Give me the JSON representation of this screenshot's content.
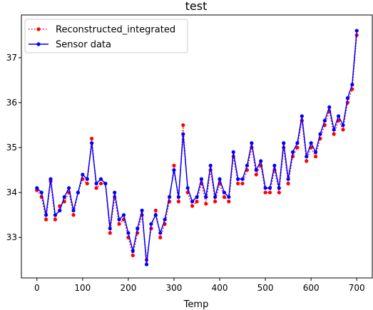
{
  "chart_data": {
    "type": "line",
    "title": "test",
    "xlabel": "Temp",
    "ylabel": "",
    "xlim": [
      -34,
      734
    ],
    "ylim": [
      32.1,
      37.95
    ],
    "xticks": [
      0,
      100,
      200,
      300,
      400,
      500,
      600,
      700
    ],
    "yticks": [
      33,
      34,
      35,
      36,
      37
    ],
    "grid": false,
    "legend_position": "upper left",
    "series": [
      {
        "name": "Reconstructed_integrated",
        "color": "#ff0000",
        "linestyle": "dotted",
        "marker": "circle",
        "x": [
          0,
          10,
          20,
          30,
          40,
          50,
          60,
          70,
          80,
          90,
          100,
          110,
          120,
          130,
          140,
          150,
          160,
          170,
          180,
          190,
          200,
          210,
          220,
          230,
          240,
          250,
          260,
          270,
          280,
          290,
          300,
          310,
          320,
          330,
          340,
          350,
          360,
          370,
          380,
          390,
          400,
          410,
          420,
          430,
          440,
          450,
          460,
          470,
          480,
          490,
          500,
          510,
          520,
          530,
          540,
          550,
          560,
          570,
          580,
          590,
          600,
          610,
          620,
          630,
          640,
          650,
          660,
          670,
          680,
          690,
          700
        ],
        "y": [
          34.05,
          33.9,
          33.4,
          34.25,
          33.4,
          33.7,
          33.8,
          34.0,
          33.5,
          34.0,
          34.3,
          34.2,
          35.2,
          34.1,
          34.2,
          34.2,
          33.1,
          33.9,
          33.3,
          33.4,
          33.0,
          32.6,
          33.1,
          33.5,
          32.5,
          33.2,
          33.6,
          33.0,
          33.3,
          33.8,
          34.6,
          33.8,
          35.5,
          34.0,
          33.7,
          33.8,
          34.2,
          33.75,
          34.5,
          33.8,
          34.2,
          33.9,
          33.8,
          34.8,
          34.2,
          34.2,
          34.5,
          35.0,
          34.4,
          34.6,
          34.0,
          34.0,
          34.5,
          34.0,
          35.0,
          34.2,
          34.8,
          35.0,
          35.6,
          34.7,
          35.0,
          34.8,
          35.2,
          35.5,
          35.8,
          35.3,
          35.6,
          35.4,
          36.0,
          36.3,
          37.5
        ]
      },
      {
        "name": "Sensor data",
        "color": "#0000ff",
        "linestyle": "solid",
        "marker": "circle",
        "x": [
          0,
          10,
          20,
          30,
          40,
          50,
          60,
          70,
          80,
          90,
          100,
          110,
          120,
          130,
          140,
          150,
          160,
          170,
          180,
          190,
          200,
          210,
          220,
          230,
          240,
          250,
          260,
          270,
          280,
          290,
          300,
          310,
          320,
          330,
          340,
          350,
          360,
          370,
          380,
          390,
          400,
          410,
          420,
          430,
          440,
          450,
          460,
          470,
          480,
          490,
          500,
          510,
          520,
          530,
          540,
          550,
          560,
          570,
          580,
          590,
          600,
          610,
          620,
          630,
          640,
          650,
          660,
          670,
          680,
          690,
          700
        ],
        "y": [
          34.1,
          34.0,
          33.5,
          34.3,
          33.5,
          33.6,
          33.9,
          34.1,
          33.6,
          34.0,
          34.4,
          34.3,
          35.1,
          34.2,
          34.3,
          34.2,
          33.2,
          34.0,
          33.4,
          33.5,
          33.1,
          32.7,
          33.2,
          33.6,
          32.4,
          33.3,
          33.5,
          33.1,
          33.4,
          33.9,
          34.5,
          33.9,
          35.3,
          34.1,
          33.8,
          33.9,
          34.3,
          33.9,
          34.6,
          33.9,
          34.3,
          34.0,
          33.9,
          34.9,
          34.3,
          34.3,
          34.6,
          35.1,
          34.5,
          34.7,
          34.1,
          34.1,
          34.6,
          34.1,
          35.1,
          34.3,
          34.9,
          35.1,
          35.7,
          34.8,
          35.1,
          34.9,
          35.3,
          35.6,
          35.9,
          35.4,
          35.7,
          35.5,
          36.1,
          36.4,
          37.6
        ]
      }
    ]
  }
}
